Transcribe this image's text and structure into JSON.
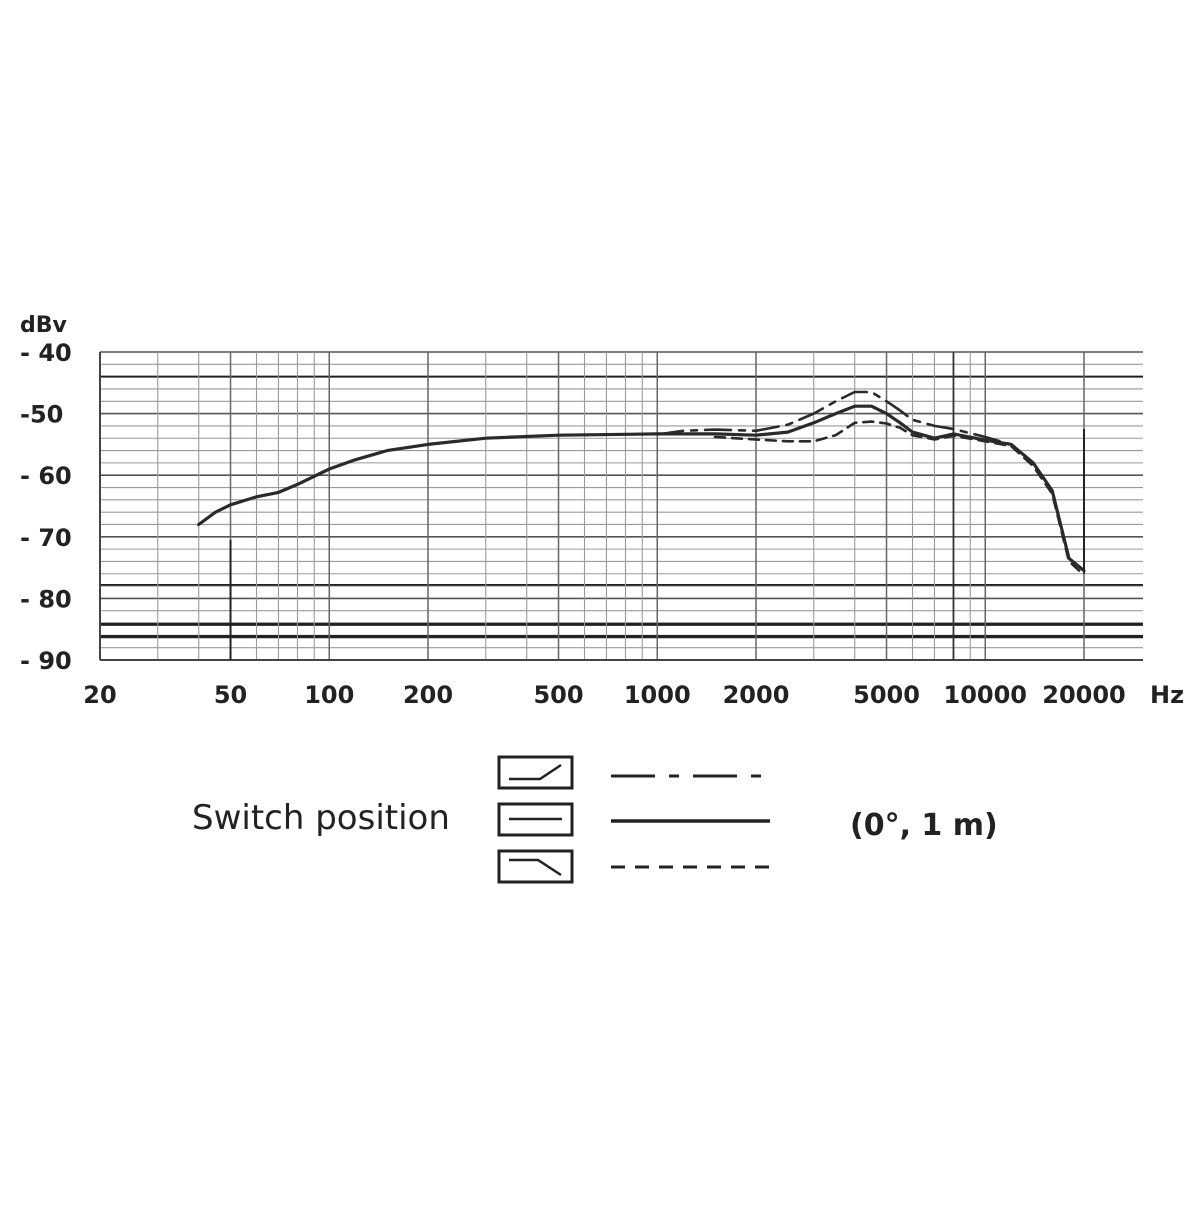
{
  "chart_data": {
    "type": "line",
    "y_unit_label": "dBv",
    "x_unit_label": "Hz",
    "x_scale": "log",
    "xlim": [
      20,
      20000
    ],
    "ylim": [
      -90,
      -40
    ],
    "grid": true,
    "x_ticks": [
      {
        "value": 20,
        "label": "20"
      },
      {
        "value": 50,
        "label": "50"
      },
      {
        "value": 100,
        "label": "100"
      },
      {
        "value": 200,
        "label": "200"
      },
      {
        "value": 500,
        "label": "500"
      },
      {
        "value": 1000,
        "label": "1000"
      },
      {
        "value": 2000,
        "label": "2000"
      },
      {
        "value": 5000,
        "label": "5000"
      },
      {
        "value": 10000,
        "label": "10000"
      },
      {
        "value": 20000,
        "label": "20000"
      }
    ],
    "y_ticks": [
      {
        "value": -40,
        "label": "- 40"
      },
      {
        "value": -50,
        "label": "-50"
      },
      {
        "value": -60,
        "label": "- 60"
      },
      {
        "value": -70,
        "label": "- 70"
      },
      {
        "value": -80,
        "label": "- 80"
      },
      {
        "value": -90,
        "label": "- 90"
      }
    ],
    "series": [
      {
        "style": "dash-dot",
        "switch": "bass-cut",
        "x": [
          1000,
          1200,
          1500,
          2000,
          2500,
          3000,
          3500,
          4000,
          4500,
          5000,
          5500,
          6000,
          7000,
          8000,
          10000,
          12000
        ],
        "y": [
          -53.4,
          -52.8,
          -52.6,
          -52.8,
          -51.8,
          -50.0,
          -48.0,
          -46.5,
          -46.5,
          -48.0,
          -49.5,
          -51.0,
          -52.0,
          -52.5,
          -53.8,
          -55.0
        ]
      },
      {
        "style": "solid",
        "switch": "linear",
        "x": [
          40,
          45,
          50,
          60,
          70,
          80,
          100,
          120,
          150,
          200,
          300,
          500,
          1000,
          1500,
          2000,
          2500,
          3000,
          3500,
          4000,
          4500,
          5000,
          5500,
          6000,
          7000,
          8000,
          10000,
          12000,
          14000,
          16000,
          18000,
          20000
        ],
        "y": [
          -68.0,
          -66.0,
          -64.8,
          -63.5,
          -62.8,
          -61.5,
          -59.0,
          -57.5,
          -56.0,
          -55.0,
          -54.0,
          -53.5,
          -53.3,
          -53.3,
          -53.5,
          -53.0,
          -51.5,
          -50.0,
          -48.8,
          -48.8,
          -50.0,
          -51.5,
          -53.0,
          -54.0,
          -53.3,
          -54.3,
          -55.0,
          -58.0,
          -62.5,
          -73.5,
          -75.5
        ]
      },
      {
        "style": "dashed",
        "switch": "treble-cut",
        "x": [
          1500,
          2000,
          2500,
          3000,
          3500,
          4000,
          4500,
          5000,
          5500,
          6000,
          7000,
          8000,
          10000,
          12000,
          14000,
          16000,
          18000,
          20000
        ],
        "y": [
          -53.8,
          -54.2,
          -54.5,
          -54.5,
          -53.5,
          -51.5,
          -51.3,
          -51.6,
          -52.3,
          -53.5,
          -54.2,
          -53.6,
          -54.5,
          -55.3,
          -58.5,
          -63.0,
          -74.0,
          -76.2
        ]
      }
    ]
  },
  "legend": {
    "title": "Switch position",
    "note": "(0°, 1 m)"
  }
}
